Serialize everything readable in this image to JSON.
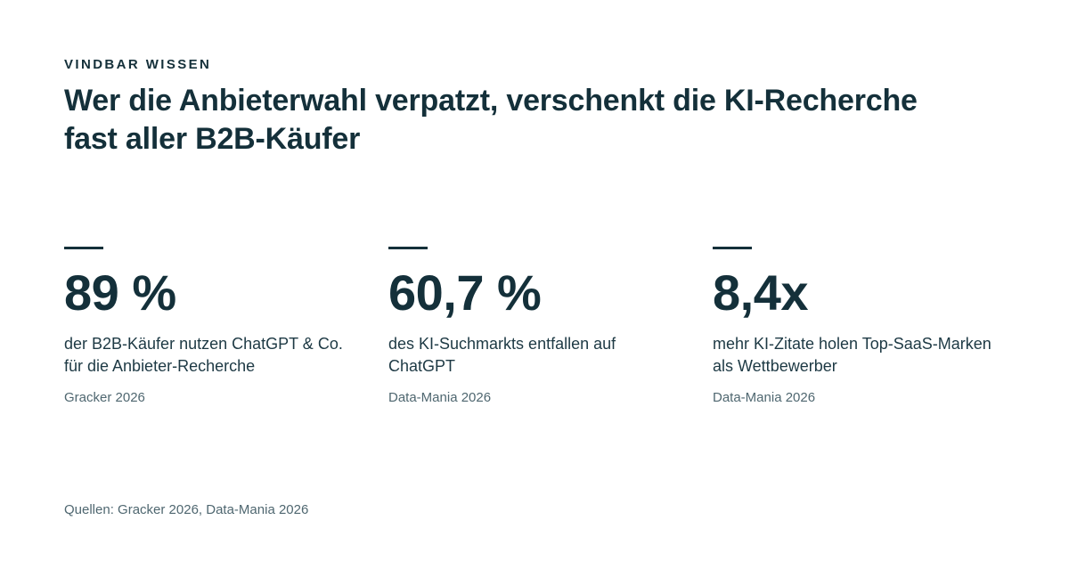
{
  "header": {
    "kicker": "VINDBAR WISSEN",
    "headline": "Wer die Anbieterwahl verpatzt, verschenkt die KI-Recherche fast aller B2B-Käufer"
  },
  "stats": [
    {
      "value": "89 %",
      "label": "der B2B-Käufer nutzen ChatGPT & Co. für die Anbieter-Recherche",
      "source": "Gracker 2026"
    },
    {
      "value": "60,7 %",
      "label": "des KI-Suchmarkts entfallen auf ChatGPT",
      "source": "Data-Mania 2026"
    },
    {
      "value": "8,4x",
      "label": "mehr KI-Zitate holen Top-SaaS-Marken als Wettbewerber",
      "source": "Data-Mania 2026"
    }
  ],
  "footer": {
    "sources": "Quellen: Gracker 2026, Data-Mania 2026"
  },
  "colors": {
    "text_primary": "#14303a",
    "text_secondary": "#4f6770",
    "background": "#ffffff"
  }
}
